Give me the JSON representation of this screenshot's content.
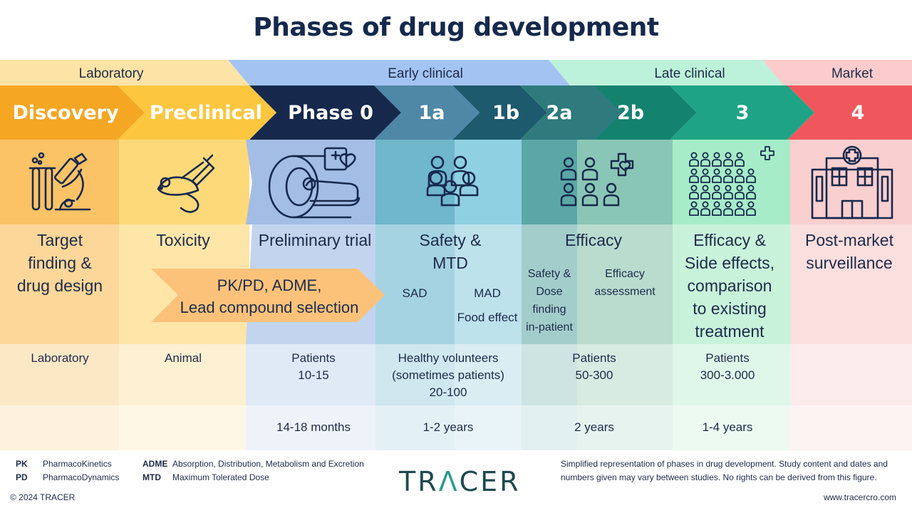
{
  "title": "Phases of drug development",
  "colors": {
    "laboratory": "#f5a623",
    "preclinical": "#fcc63f",
    "phase0": "#16294d",
    "phase1a": "#4f87a6",
    "phase1b": "#1d5a6d",
    "phase2a": "#2e7a7c",
    "phase2b": "#13836f",
    "phase3": "#1ea484",
    "phase4": "#f0575c"
  },
  "categories": [
    {
      "label": "Laboratory"
    },
    {
      "label": "Early clinical"
    },
    {
      "label": "Late clinical"
    },
    {
      "label": "Market"
    }
  ],
  "phases": [
    {
      "label": "Discovery"
    },
    {
      "label": "Preclinical"
    },
    {
      "label": "Phase 0"
    },
    {
      "label": "1a"
    },
    {
      "label": "1b"
    },
    {
      "label": "2a"
    },
    {
      "label": "2b"
    },
    {
      "label": "3"
    },
    {
      "label": "4"
    }
  ],
  "icons": [
    "lab-microscope-icon",
    "lab-mouse-icon",
    "scanner-icon",
    "group-icon",
    "group-grid-icon",
    "crowd-icon",
    "hospital-icon"
  ],
  "descriptions": {
    "discovery": [
      "Target",
      "finding &",
      "drug design"
    ],
    "preclinical": "Toxicity",
    "pkpd": [
      "PK/PD, ADME,",
      "Lead compound selection"
    ],
    "phase0": "Preliminary trial",
    "phase1": [
      "Safety &",
      "MTD"
    ],
    "sad": "SAD",
    "mad": "MAD",
    "food": "Food effect",
    "phase2": "Efficacy",
    "phase2a": [
      "Safety &",
      "Dose",
      "finding",
      "in-patient"
    ],
    "phase2b": [
      "Efficacy",
      "assessment"
    ],
    "phase3": [
      "Efficacy &",
      "Side effects,",
      "comparison",
      "to existing",
      "treatment"
    ],
    "phase4": [
      "Post-market",
      "surveillance"
    ]
  },
  "subjects": {
    "discovery": "Laboratory",
    "preclinical": "Animal",
    "phase0": [
      "Patients",
      "10-15"
    ],
    "phase1": [
      "Healthy volunteers",
      "(sometimes patients)",
      "20-100"
    ],
    "phase2": [
      "Patients",
      "50-300"
    ],
    "phase3": [
      "Patients",
      "300-3.000"
    ]
  },
  "durations": {
    "phase0": "14-18 months",
    "phase1": "1-2 years",
    "phase2": "2 years",
    "phase3": "1-4 years"
  },
  "footer": {
    "pk_abbr": "PK",
    "pk": "PharmacoKinetics",
    "pd_abbr": "PD",
    "pd": "PharmacoDynamics",
    "adme_abbr": "ADME",
    "adme": "Absorption, Distribution, Metabolism and Excretion",
    "mtd_abbr": "MTD",
    "mtd": "Maximum Tolerated Dose",
    "logo_1": "TR",
    "logo_2": "Λ",
    "logo_3": "CER",
    "disclaimer_1": "Simplified representation of phases in drug development. Study content and dates and",
    "disclaimer_2": "numbers given may vary between studies. No rights can be derived from this figure.",
    "copyright": "© 2024 TRACER",
    "website": "www.tracercro.com"
  }
}
